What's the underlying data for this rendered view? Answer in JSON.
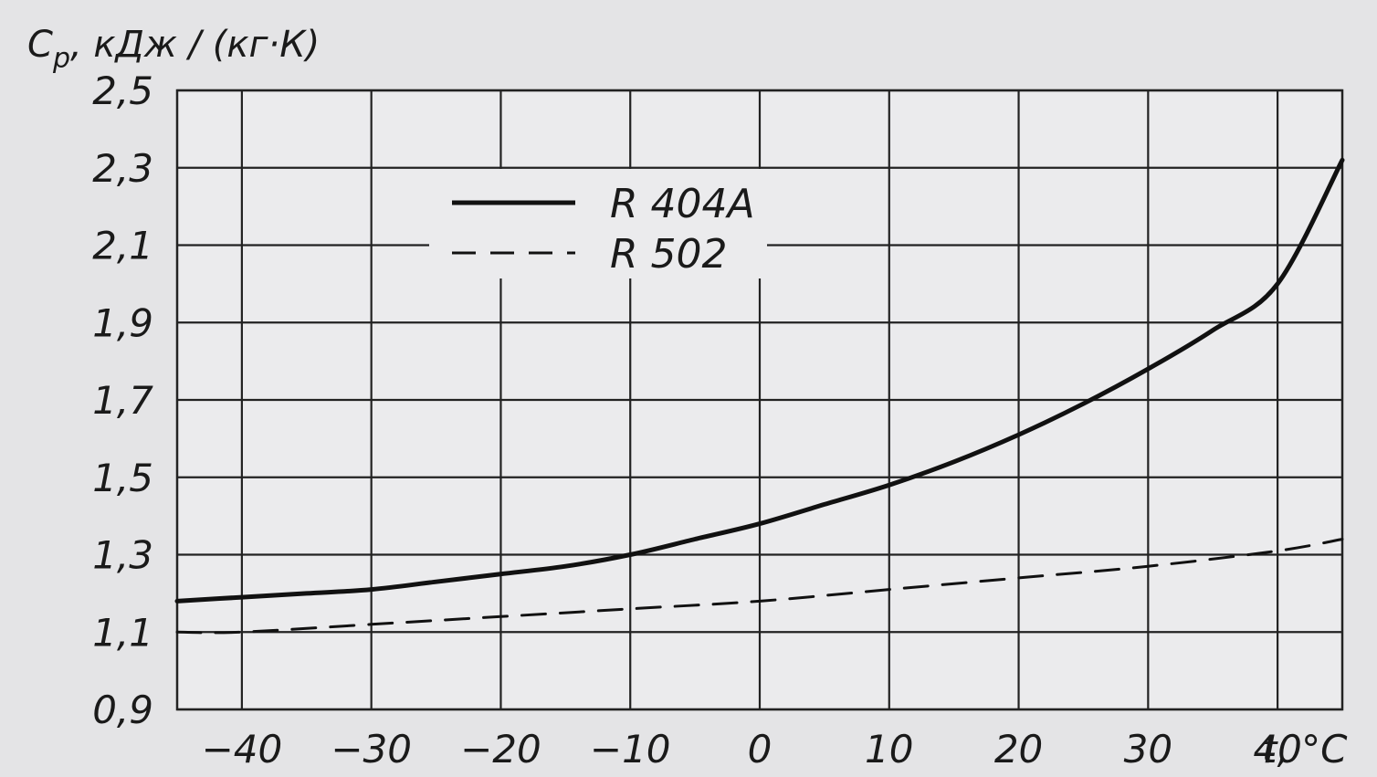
{
  "chart_data": {
    "type": "line",
    "ylabel": "Cp, кДж / (кг·К)",
    "ylabel_main": "C",
    "ylabel_sub": "p",
    "ylabel_rest": ", кДж / (кг·К)",
    "xlabel": "t, °C",
    "xlim": [
      -45,
      45
    ],
    "ylim": [
      0.9,
      2.5
    ],
    "x_ticks": [
      -40,
      -30,
      -20,
      -10,
      0,
      10,
      20,
      30,
      40
    ],
    "x_tick_labels": [
      "−40",
      "−30",
      "−20",
      "−10",
      "0",
      "10",
      "20",
      "30",
      "40"
    ],
    "y_ticks": [
      0.9,
      1.1,
      1.3,
      1.5,
      1.7,
      1.9,
      2.1,
      2.3,
      2.5
    ],
    "y_tick_labels": [
      "0,9",
      "1,1",
      "1,3",
      "1,5",
      "1,7",
      "1,9",
      "2,1",
      "2,3",
      "2,5"
    ],
    "grid": true,
    "legend_position": "top-left",
    "series": [
      {
        "name": "R 404A",
        "style": "solid",
        "color": "#111111",
        "x": [
          -45,
          -40,
          -35,
          -30,
          -25,
          -20,
          -15,
          -10,
          -5,
          0,
          5,
          10,
          15,
          20,
          25,
          30,
          35,
          40,
          45
        ],
        "y": [
          1.18,
          1.19,
          1.2,
          1.21,
          1.23,
          1.25,
          1.27,
          1.3,
          1.34,
          1.38,
          1.43,
          1.48,
          1.54,
          1.61,
          1.69,
          1.78,
          1.88,
          2.0,
          2.32
        ]
      },
      {
        "name": "R 502",
        "style": "dashed",
        "color": "#111111",
        "x": [
          -45,
          -40,
          -30,
          -20,
          -10,
          0,
          10,
          20,
          30,
          40,
          45
        ],
        "y": [
          1.1,
          1.1,
          1.12,
          1.14,
          1.16,
          1.18,
          1.21,
          1.24,
          1.27,
          1.31,
          1.34
        ]
      }
    ]
  }
}
